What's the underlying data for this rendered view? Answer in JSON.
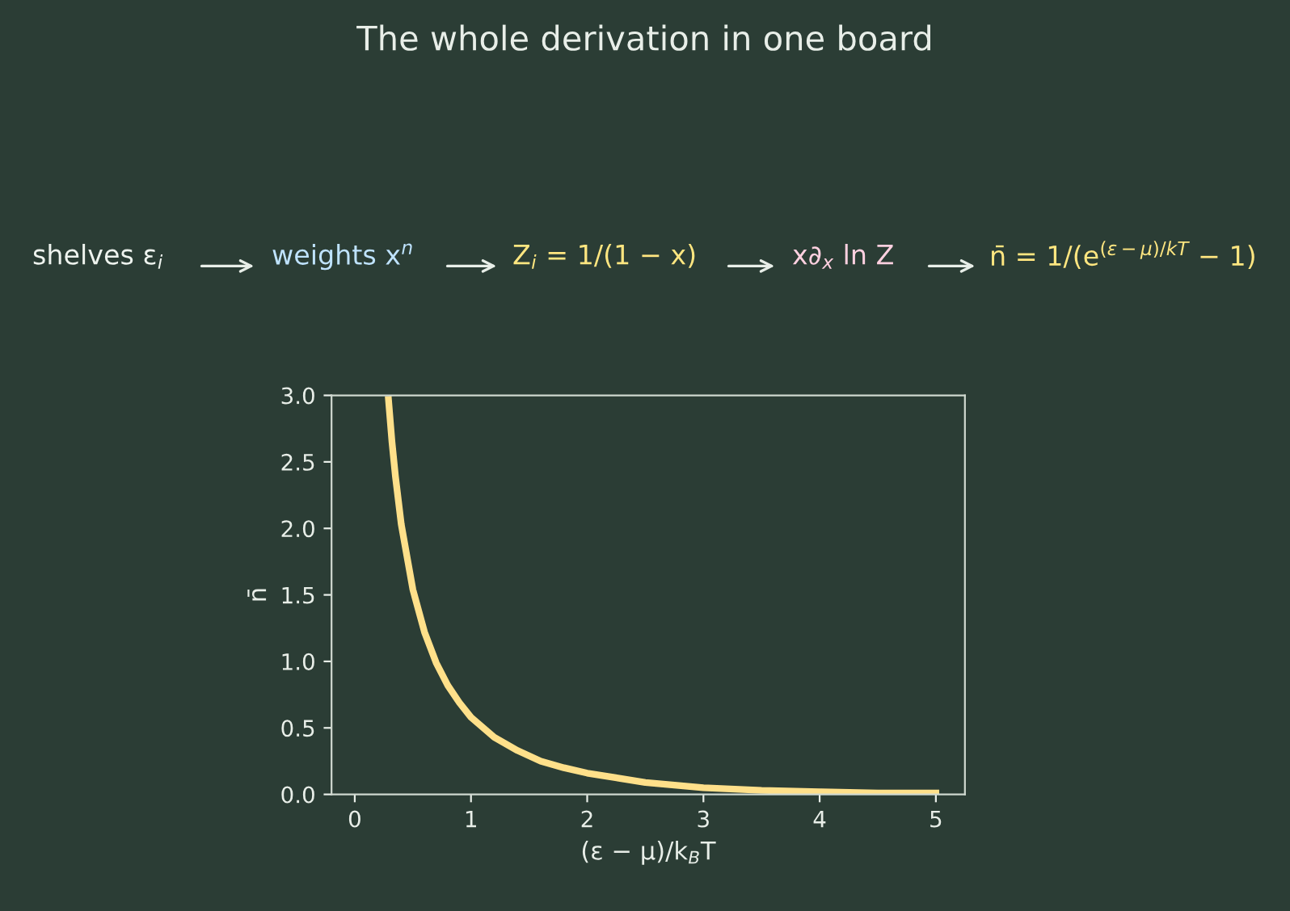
{
  "chart_data": {
    "type": "line",
    "title": "The whole derivation in one board",
    "xlabel": "(ε − μ)/k$_{B}$T",
    "ylabel": "n̄",
    "annotations": [
      "shelves ε$_{i}$",
      "weights x$^{n}$",
      "Z$_{i}$ = 1/(1 − x)",
      "x∂$_{x}$ ln Z",
      "n̄ = 1/(e$^{(ε−μ)/kT}$ − 1)"
    ],
    "x": [
      0.29,
      0.32,
      0.35,
      0.4,
      0.5,
      0.6,
      0.7,
      0.8,
      0.9,
      1.0,
      1.2,
      1.4,
      1.6,
      1.8,
      2.0,
      2.5,
      3.0,
      3.5,
      4.0,
      4.5,
      5.0
    ],
    "series": [
      {
        "color": "#ffe08a",
        "values": [
          2.97,
          2.65,
          2.39,
          2.03,
          1.54,
          1.22,
          0.99,
          0.82,
          0.69,
          0.58,
          0.43,
          0.33,
          0.25,
          0.2,
          0.16,
          0.09,
          0.05,
          0.03,
          0.02,
          0.01,
          0.01
        ]
      }
    ],
    "xlim": [
      -0.2,
      5.25
    ],
    "ylim": [
      0,
      3
    ],
    "xticks": [
      0,
      1,
      2,
      3,
      4,
      5
    ],
    "yticks": [
      {
        "value": 0,
        "label": "0.0"
      },
      0.5,
      {
        "value": 1,
        "label": "1.0"
      },
      1.5,
      {
        "value": 2,
        "label": "2.0"
      },
      2.5,
      {
        "value": 3,
        "label": "3.0"
      }
    ],
    "grid": false,
    "legend": false,
    "marker": "none",
    "line_style": "solid"
  }
}
